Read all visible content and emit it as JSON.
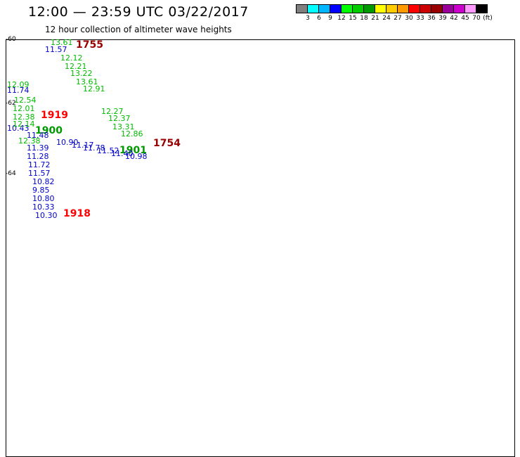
{
  "header": {
    "title": "12:00 — 23:59 UTC 03/22/2017",
    "subtitle": "12 hour collection of altimeter wave heights"
  },
  "legend": {
    "swatches": [
      "#7f7f7f",
      "#00ffff",
      "#00b7ff",
      "#0000ff",
      "#00ff00",
      "#00cc00",
      "#009900",
      "#ffff00",
      "#ffcc00",
      "#ff9900",
      "#ff0000",
      "#cc0000",
      "#990000",
      "#990099",
      "#cc00cc",
      "#ff99ff",
      "#000000"
    ],
    "labels": [
      "3",
      "6",
      "9",
      "12",
      "15",
      "18",
      "21",
      "24",
      "27",
      "30",
      "33",
      "36",
      "39",
      "42",
      "45",
      "70",
      "(ft)"
    ]
  },
  "map": {
    "lat_labels": [
      "-60",
      "-62",
      "-64"
    ],
    "jason2_labels": [
      "11.57",
      "11.74",
      "10.43",
      "11.48",
      "11.39",
      "11.28",
      "11.72",
      "11.57",
      "10.82",
      "9.85",
      "10.80",
      "10.33",
      "10.30",
      "10.90",
      "11.17",
      "11.78",
      "11.52",
      "11.40",
      "10.98"
    ],
    "jason3_labels": [
      "13.61",
      "12.12",
      "12.21",
      "13.22",
      "13.61",
      "12.91",
      "12.09",
      "12.54",
      "12.01",
      "12.38",
      "12.14",
      "12.38",
      "12.27",
      "12.37",
      "13.31",
      "12.86"
    ],
    "time_labels": [
      {
        "text": "1755",
        "color": "#990000"
      },
      {
        "text": "1919",
        "color": "#ff0000"
      },
      {
        "text": "1900",
        "color": "#009900"
      },
      {
        "text": "1754",
        "color": "#990000"
      },
      {
        "text": "1901",
        "color": "#009900"
      },
      {
        "text": "1918",
        "color": "#ff0000"
      }
    ]
  }
}
